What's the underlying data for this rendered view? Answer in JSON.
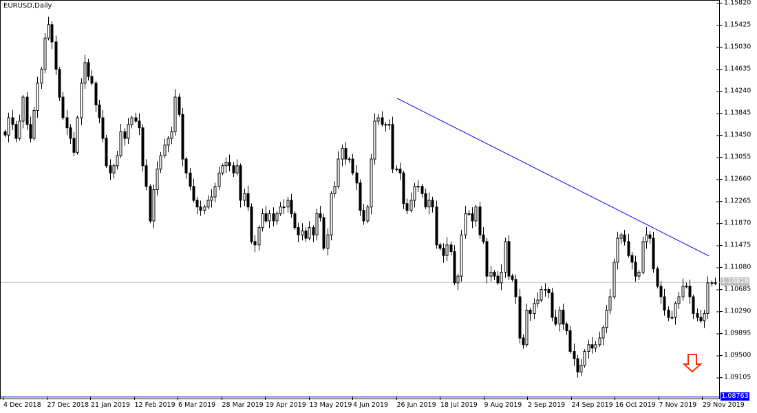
{
  "window": {
    "title": "EURUSD,Daily"
  },
  "colors": {
    "bull_body": "#ffffff",
    "bear_body": "#000000",
    "candle_outline": "#000000",
    "trendline": "#0000ff",
    "bid_line": "#c0c0c0",
    "low_line": "#0000cc",
    "arrow": "#ff2a00"
  },
  "icons": {
    "signal_arrow": "down-arrow-icon"
  },
  "chart_data": {
    "type": "candlestick",
    "symbol": "EURUSD",
    "timeframe": "Daily",
    "ylim": [
      1.08763,
      1.1582
    ],
    "grid": false,
    "y_ticks": [
      "1.15820",
      "1.15425",
      "1.15030",
      "1.14635",
      "1.14240",
      "1.13845",
      "1.13450",
      "1.13055",
      "1.12660",
      "1.12265",
      "1.11870",
      "1.11475",
      "1.11080",
      "1.10685",
      "1.10290",
      "1.09895",
      "1.09500",
      "1.09105"
    ],
    "x_ticks": [
      "4 Dec 2018",
      "27 Dec 2018",
      "21 Jan 2019",
      "12 Feb 2019",
      "6 Mar 2019",
      "28 Mar 2019",
      "19 Apr 2019",
      "13 May 2019",
      "4 Jun 2019",
      "26 Jun 2019",
      "18 Jul 2019",
      "9 Aug 2019",
      "2 Sep 2019",
      "24 Sep 2019",
      "16 Oct 2019",
      "7 Nov 2019",
      "29 Nov 2019"
    ],
    "current_price": "1.10818",
    "low_price_label": "1.08763",
    "trendline": {
      "start": {
        "date": "2019-06-25",
        "price": 1.1412
      },
      "end": {
        "date": "2019-12-03",
        "price": 1.1129
      }
    },
    "close": [
      1.1346,
      1.1377,
      1.1365,
      1.134,
      1.1371,
      1.1414,
      1.1365,
      1.134,
      1.139,
      1.1439,
      1.1464,
      1.152,
      1.1544,
      1.1513,
      1.1464,
      1.1414,
      1.1377,
      1.1359,
      1.134,
      1.1315,
      1.1377,
      1.1439,
      1.1476,
      1.1451,
      1.1439,
      1.14,
      1.1377,
      1.134,
      1.1291,
      1.1278,
      1.1291,
      1.1309,
      1.1352,
      1.134,
      1.1365,
      1.1377,
      1.1371,
      1.1359,
      1.1291,
      1.1254,
      1.1192,
      1.1248,
      1.1285,
      1.1309,
      1.1328,
      1.134,
      1.1352,
      1.1414,
      1.1383,
      1.1303,
      1.1278,
      1.1254,
      1.1229,
      1.1217,
      1.1211,
      1.1217,
      1.1229,
      1.1235,
      1.1254,
      1.1278,
      1.1291,
      1.1297,
      1.1291,
      1.1278,
      1.1291,
      1.1229,
      1.1241,
      1.1217,
      1.1155,
      1.1149,
      1.118,
      1.1205,
      1.1192,
      1.1205,
      1.1192,
      1.1205,
      1.1217,
      1.1217,
      1.1229,
      1.1205,
      1.118,
      1.1167,
      1.1174,
      1.1161,
      1.118,
      1.1167,
      1.1205,
      1.1198,
      1.1143,
      1.1167,
      1.1241,
      1.1254,
      1.1303,
      1.1322,
      1.1303,
      1.1303,
      1.1278,
      1.126,
      1.1211,
      1.1192,
      1.1217,
      1.1303,
      1.1371,
      1.1377,
      1.1365,
      1.1365,
      1.1365,
      1.1285,
      1.1285,
      1.1278,
      1.1223,
      1.1211,
      1.1229,
      1.1254,
      1.1254,
      1.1241,
      1.1217,
      1.1229,
      1.1217,
      1.1149,
      1.1143,
      1.113,
      1.1149,
      1.1137,
      1.1081,
      1.1093,
      1.1167,
      1.1205,
      1.1205,
      1.1192,
      1.1217,
      1.1167,
      1.1155,
      1.1093,
      1.11,
      1.1093,
      1.1081,
      1.11,
      1.1155,
      1.1093,
      1.1087,
      1.1056,
      1.0982,
      1.097,
      1.1032,
      1.1026,
      1.1044,
      1.105,
      1.1069,
      1.1069,
      1.1063,
      1.1019,
      1.1007,
      1.1032,
      1.1007,
      1.0995,
      1.0958,
      1.0945,
      1.0921,
      1.0933,
      1.0958,
      1.097,
      1.0964,
      1.097,
      1.0982,
      1.1001,
      1.1032,
      1.1056,
      1.1118,
      1.1161,
      1.1167,
      1.1155,
      1.113,
      1.1118,
      1.1093,
      1.11,
      1.1155,
      1.1167,
      1.1161,
      1.1106,
      1.1075,
      1.1056,
      1.1032,
      1.1019,
      1.1019,
      1.1044,
      1.1056,
      1.1075,
      1.1075,
      1.1056,
      1.1026,
      1.1019,
      1.1013,
      1.1026,
      1.1081,
      1.1081,
      1.1081
    ]
  }
}
